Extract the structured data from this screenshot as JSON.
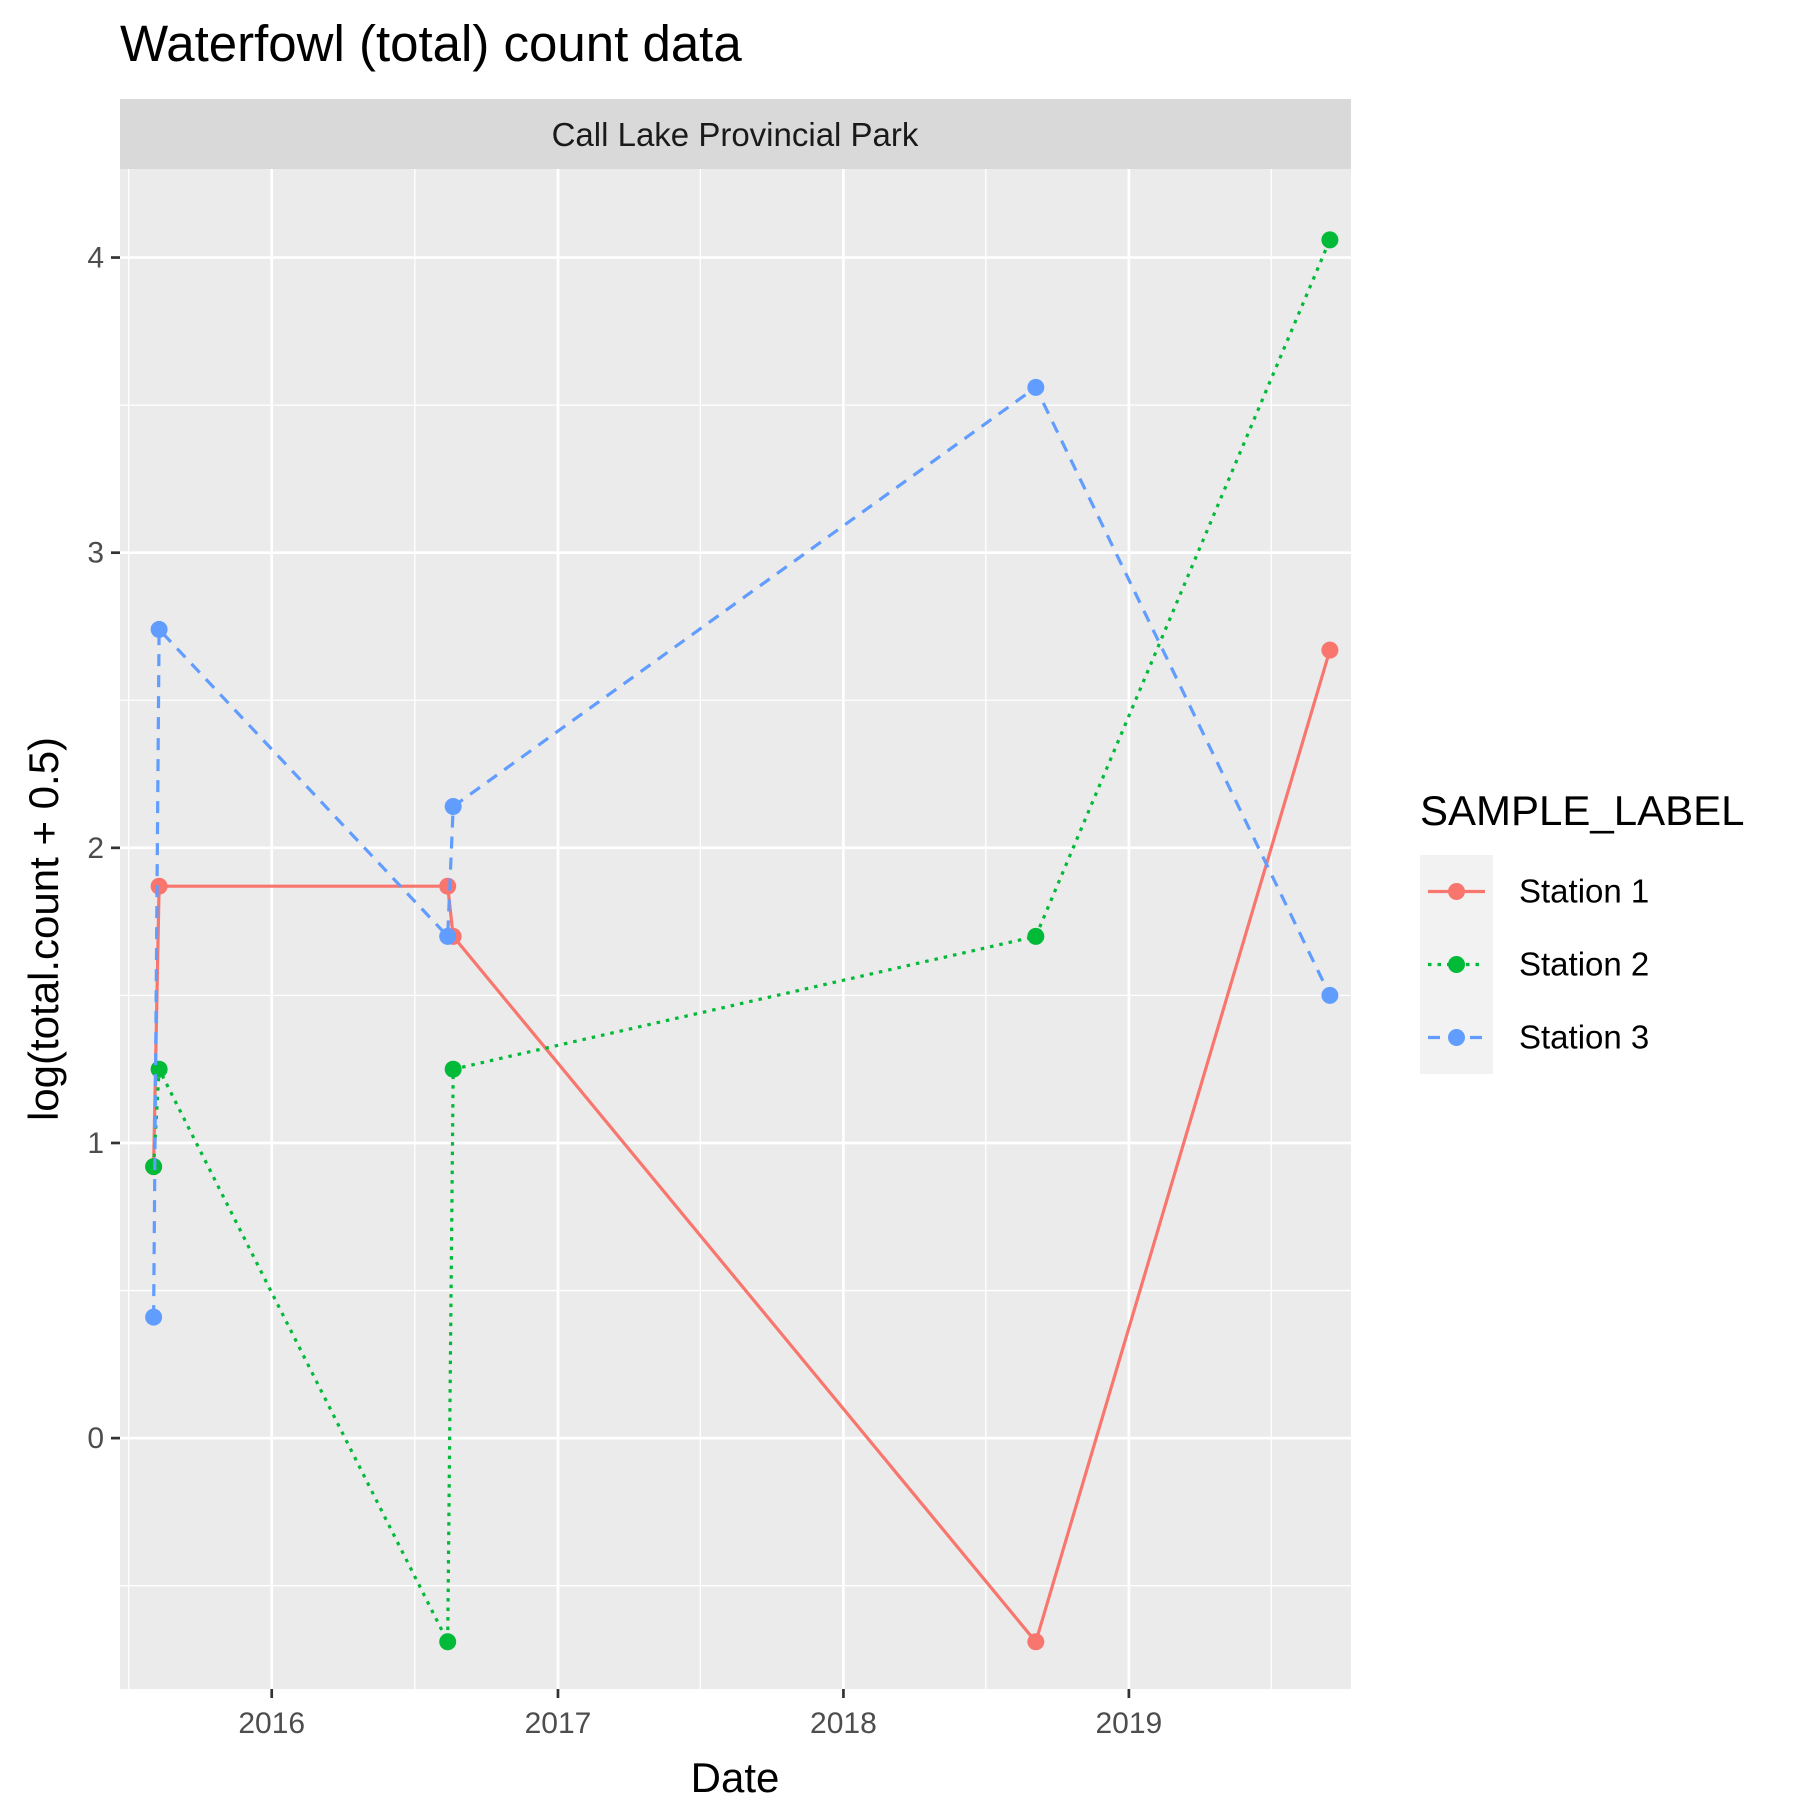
{
  "chart_data": {
    "type": "line",
    "title": "Waterfowl (total) count data",
    "facet": "Call Lake Provincial Park",
    "xlabel": "Date",
    "ylabel": "log(total.count + 0.5)",
    "x_type": "date",
    "xlim": [
      "2015-06-21",
      "2019-10-12"
    ],
    "ylim": [
      -0.85,
      4.3
    ],
    "x_ticks": [
      "2016",
      "2017",
      "2018",
      "2019"
    ],
    "x_tick_dates": [
      "2016-01-01",
      "2017-01-01",
      "2018-01-01",
      "2019-01-01"
    ],
    "x_minor_dates": [
      "2015-07-02",
      "2016-07-02",
      "2017-07-02",
      "2018-07-02",
      "2019-07-02"
    ],
    "y_ticks": [
      0,
      1,
      2,
      3,
      4
    ],
    "y_tick_labels": [
      "0",
      "1",
      "2",
      "3",
      "4"
    ],
    "y_minor": [
      -0.5,
      0.5,
      1.5,
      2.5,
      3.5
    ],
    "grid": true,
    "legend": {
      "title": "SAMPLE_LABEL",
      "position": "right"
    },
    "series": [
      {
        "name": "Station 1",
        "color": "#F8766D",
        "line_style": "solid",
        "points": [
          {
            "x": "2015-08-03",
            "y": 0.92
          },
          {
            "x": "2015-08-10",
            "y": 1.87
          },
          {
            "x": "2016-08-13",
            "y": 1.87
          },
          {
            "x": "2016-08-20",
            "y": 1.7
          },
          {
            "x": "2018-09-04",
            "y": -0.69
          },
          {
            "x": "2019-09-15",
            "y": 2.67
          }
        ]
      },
      {
        "name": "Station 2",
        "color": "#00BA38",
        "line_style": "dotted",
        "points": [
          {
            "x": "2015-08-03",
            "y": 0.92
          },
          {
            "x": "2015-08-10",
            "y": 1.25
          },
          {
            "x": "2016-08-13",
            "y": -0.69
          },
          {
            "x": "2016-08-20",
            "y": 1.25
          },
          {
            "x": "2018-09-04",
            "y": 1.7
          },
          {
            "x": "2019-09-15",
            "y": 4.06
          }
        ]
      },
      {
        "name": "Station 3",
        "color": "#619CFF",
        "line_style": "dashed",
        "points": [
          {
            "x": "2015-08-03",
            "y": 0.41
          },
          {
            "x": "2015-08-10",
            "y": 2.74
          },
          {
            "x": "2016-08-13",
            "y": 1.7
          },
          {
            "x": "2016-08-20",
            "y": 2.14
          },
          {
            "x": "2018-09-04",
            "y": 3.56
          },
          {
            "x": "2019-09-15",
            "y": 1.5
          }
        ]
      }
    ]
  }
}
